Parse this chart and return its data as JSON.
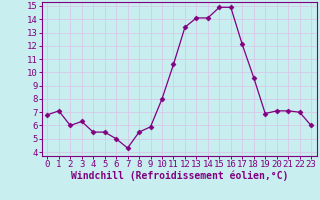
{
  "x": [
    0,
    1,
    2,
    3,
    4,
    5,
    6,
    7,
    8,
    9,
    10,
    11,
    12,
    13,
    14,
    15,
    16,
    17,
    18,
    19,
    20,
    21,
    22,
    23
  ],
  "y": [
    6.8,
    7.1,
    6.0,
    6.3,
    5.5,
    5.5,
    5.0,
    4.3,
    5.5,
    5.9,
    8.0,
    10.6,
    13.4,
    14.1,
    14.1,
    14.9,
    14.9,
    12.1,
    9.6,
    6.9,
    7.1,
    7.1,
    7.0,
    6.0
  ],
  "line_color": "#800080",
  "marker": "D",
  "marker_size": 2.5,
  "bg_color": "#c8eef0",
  "grid_color": "#d8c8e8",
  "xlabel": "Windchill (Refroidissement éolien,°C)",
  "xlabel_color": "#800080",
  "tick_color": "#800080",
  "ylim_min": 4,
  "ylim_max": 15,
  "xlim_min": 0,
  "xlim_max": 23,
  "yticks": [
    4,
    5,
    6,
    7,
    8,
    9,
    10,
    11,
    12,
    13,
    14,
    15
  ],
  "xticks": [
    0,
    1,
    2,
    3,
    4,
    5,
    6,
    7,
    8,
    9,
    10,
    11,
    12,
    13,
    14,
    15,
    16,
    17,
    18,
    19,
    20,
    21,
    22,
    23
  ],
  "spine_color": "#800080",
  "font_size": 6.5,
  "xlabel_fontsize": 7.0
}
